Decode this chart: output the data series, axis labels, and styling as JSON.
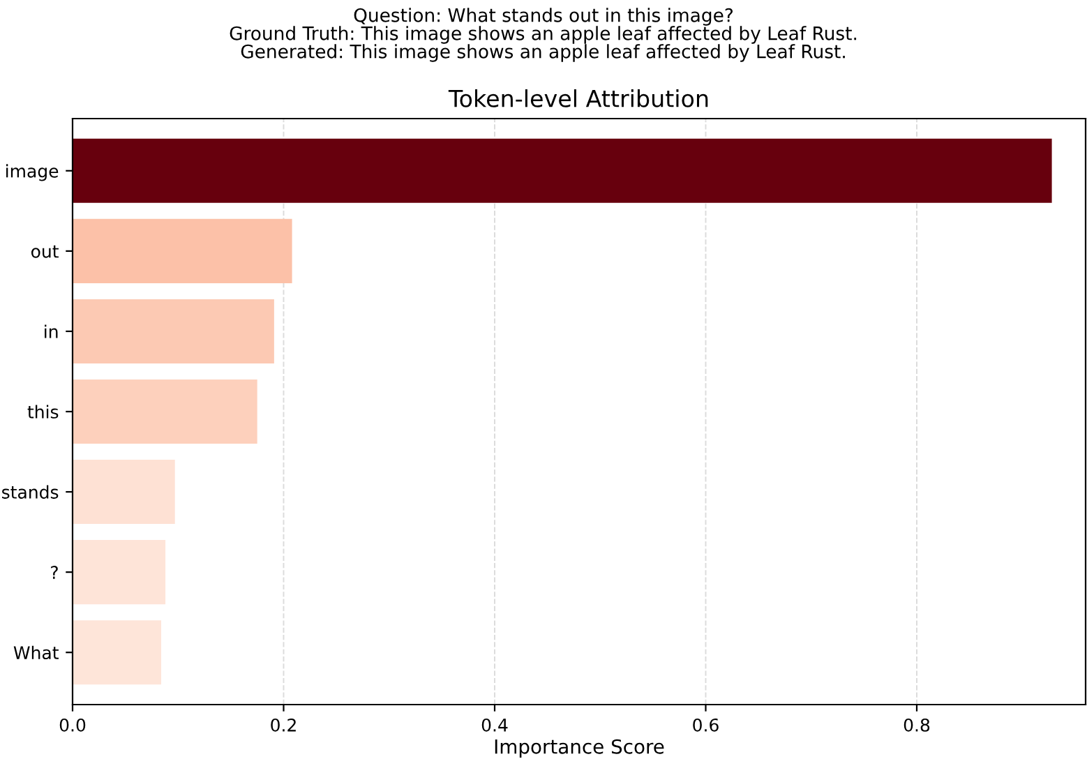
{
  "chart_data": {
    "type": "bar",
    "orientation": "horizontal",
    "title": "Token-level Attribution",
    "xlabel": "Importance Score",
    "annotations": [
      "Question: What stands out in this image?",
      "Ground Truth: This image shows an apple leaf affected by Leaf Rust.",
      "Generated: This image shows an apple leaf affected by Leaf Rust."
    ],
    "categories": [
      "image",
      "out",
      "in",
      "this",
      "stands",
      "?",
      "What"
    ],
    "values": [
      0.928,
      0.208,
      0.191,
      0.175,
      0.097,
      0.088,
      0.084
    ],
    "colors": [
      "#67000d",
      "#fcc1a8",
      "#fcc9b3",
      "#fdd0bc",
      "#fee1d4",
      "#fee4d8",
      "#fee5d9"
    ],
    "xlim": [
      0,
      0.96
    ],
    "xticks": [
      {
        "value": 0,
        "label": "0.0"
      },
      {
        "value": 0.2,
        "label": "0.2"
      },
      {
        "value": 0.4,
        "label": "0.4"
      },
      {
        "value": 0.6,
        "label": "0.6"
      },
      {
        "value": 0.8,
        "label": "0.8"
      }
    ],
    "grid": "x"
  }
}
